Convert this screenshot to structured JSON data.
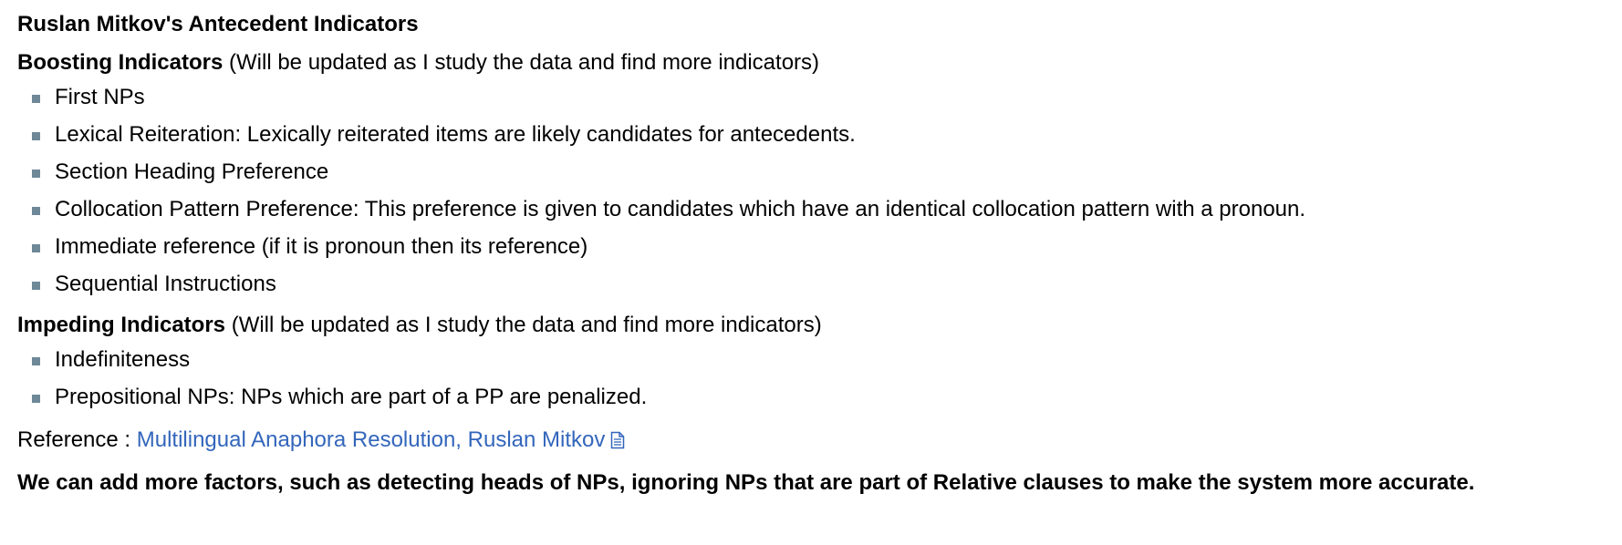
{
  "title": "Ruslan Mitkov's Antecedent Indicators",
  "boosting": {
    "heading": "Boosting Indicators",
    "note": "(Will be updated as I study the data and find more indicators)",
    "items": [
      "First NPs",
      "Lexical Reiteration: Lexically reiterated items are likely candidates for antecedents.",
      "Section Heading Preference",
      "Collocation Pattern Preference: This preference is given to candidates which have an identical collocation pattern with a pronoun.",
      "Immediate reference (if it is pronoun then its reference)",
      "Sequential Instructions"
    ]
  },
  "impeding": {
    "heading": "Impeding Indicators",
    "note": "(Will be updated as I study the data and find more indicators)",
    "items": [
      "Indefiniteness",
      "Prepositional NPs: NPs which are part of a PP are penalized."
    ]
  },
  "reference": {
    "label": "Reference :",
    "link_text": "Multilingual Anaphora Resolution, Ruslan Mitkov",
    "icon": "document-icon",
    "link_color": "#3366bb"
  },
  "closing": "We can add more factors, such as detecting heads of NPs, ignoring NPs that are part of Relative clauses to make the system more accurate.",
  "colors": {
    "bullet": "#6e8898",
    "text": "#000000",
    "link": "#3366bb"
  }
}
